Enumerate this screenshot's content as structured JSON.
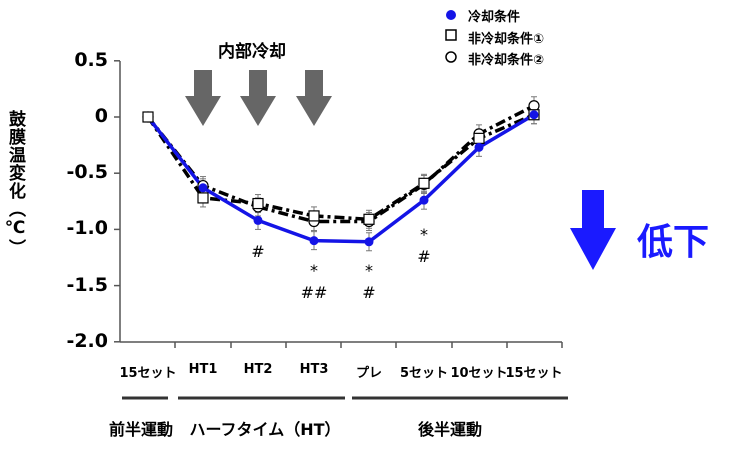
{
  "chart_data": {
    "type": "line",
    "title": "",
    "xlabel": "",
    "ylabel": "鼓膜温変化（℃）",
    "ylim": [
      -2.0,
      0.5
    ],
    "yticks": [
      "0.5",
      "0",
      "-0.5",
      "-1.0",
      "-1.5",
      "-2.0"
    ],
    "categories": [
      "15セット",
      "HT1",
      "HT2",
      "HT3",
      "プレ",
      "5セット",
      "10セット",
      "15セット"
    ],
    "series": [
      {
        "name": "冷却条件",
        "marker": "filled-circle",
        "color": "#1414e6",
        "line": "solid",
        "values": [
          0.0,
          -0.63,
          -0.92,
          -1.1,
          -1.11,
          -0.74,
          -0.27,
          0.02
        ]
      },
      {
        "name": "非冷却条件①",
        "marker": "open-square",
        "color": "#000000",
        "line": "dash-dot",
        "values": [
          0.0,
          -0.72,
          -0.77,
          -0.88,
          -0.91,
          -0.59,
          -0.19,
          0.02
        ]
      },
      {
        "name": "非冷却条件②",
        "marker": "open-circle",
        "color": "#000000",
        "line": "dash-dot",
        "values": [
          0.0,
          -0.61,
          -0.8,
          -0.93,
          -0.93,
          -0.6,
          -0.15,
          0.1
        ]
      }
    ],
    "annotations": [
      {
        "category": "HT2",
        "text": [
          "#"
        ]
      },
      {
        "category": "HT3",
        "text": [
          "*",
          "##"
        ]
      },
      {
        "category": "プレ",
        "text": [
          "*",
          "#"
        ]
      },
      {
        "category": "5セット",
        "text": [
          "*",
          "#"
        ]
      }
    ],
    "phases": [
      {
        "label": "前半運動",
        "span": [
          "15セット",
          "15セット"
        ]
      },
      {
        "label": "ハーフタイム（HT）",
        "span": [
          "HT1",
          "HT3"
        ]
      },
      {
        "label": "後半運動",
        "span": [
          "プレ",
          "15セット"
        ]
      }
    ],
    "callouts": {
      "internal_cooling": "内部冷却",
      "decrease": "低下"
    },
    "legend_position": "top-right",
    "grid": false
  },
  "legend": [
    {
      "label": "冷却条件"
    },
    {
      "label": "非冷却条件①"
    },
    {
      "label": "非冷却条件②"
    }
  ],
  "axis": {
    "ylabel": "鼓膜温変化（℃）",
    "yticks": [
      "0.5",
      "0",
      "-0.5",
      "-1.0",
      "-1.5",
      "-2.0"
    ],
    "xticks": [
      "15セット",
      "HT1",
      "HT2",
      "HT3",
      "プレ",
      "5セット",
      "10セット",
      "15セット"
    ]
  },
  "phases": [
    "前半運動",
    "ハーフタイム（HT）",
    "後半運動"
  ],
  "callouts": {
    "internal_cooling": "内部冷却",
    "decrease": "低下"
  },
  "annotations": {
    "ht2": [
      "#"
    ],
    "ht3": [
      "*",
      "##"
    ],
    "pre": [
      "*",
      "#"
    ],
    "set5": [
      "*",
      "#"
    ]
  }
}
